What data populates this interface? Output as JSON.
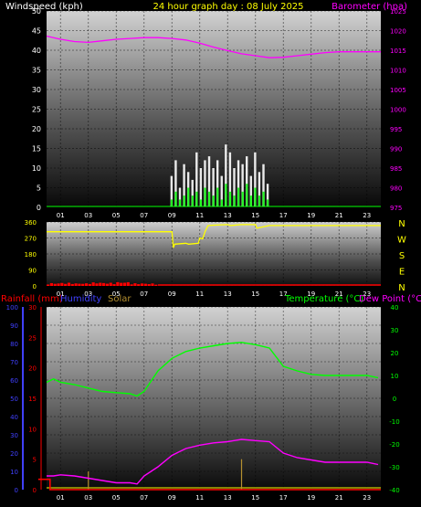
{
  "header": {
    "left_label": "Windspeed (kph)",
    "center_title": "24 hour graph day : 08 July 2025",
    "right_label": "Barometer (hpa)"
  },
  "colors": {
    "wind": "#ffffff",
    "gust_fill": "#ffffff",
    "wind_avg": "#00ff00",
    "barometer": "#ff00ff",
    "direction": "#ffff00",
    "rain": "#ff0000",
    "humidity": "#b000b0",
    "solar": "#b59030",
    "temperature": "#00ff00",
    "dewpoint": "#ff00ff",
    "axis_yellow": "#ffff00",
    "axis_label_blue": "#4040ff"
  },
  "chart_data": [
    {
      "type": "line",
      "panel": "wind-barometer",
      "x_ticks": [
        "01",
        "03",
        "05",
        "07",
        "09",
        "11",
        "13",
        "15",
        "17",
        "19",
        "21",
        "23"
      ],
      "ylim": [
        0,
        50
      ],
      "y_ticks": [
        0,
        5,
        10,
        15,
        20,
        25,
        30,
        35,
        40,
        45,
        50
      ],
      "y2lim": [
        975,
        1025
      ],
      "y2_ticks": [
        975,
        980,
        985,
        990,
        995,
        1000,
        1005,
        1010,
        1015,
        1020,
        1025
      ],
      "grid": true,
      "series": [
        {
          "role": "barometer",
          "x": [
            0,
            1,
            2,
            3,
            4,
            5,
            6,
            7,
            8,
            9,
            10,
            11,
            12,
            13,
            14,
            15,
            16,
            17,
            18,
            19,
            20,
            21,
            22,
            23,
            24
          ],
          "values": [
            1018.6,
            1017.8,
            1017.2,
            1017.0,
            1017.4,
            1017.8,
            1018.0,
            1018.2,
            1018.2,
            1018.0,
            1017.6,
            1016.8,
            1015.8,
            1014.9,
            1014.1,
            1013.6,
            1013.1,
            1013.2,
            1013.6,
            1014.0,
            1014.4,
            1014.6,
            1014.6,
            1014.6,
            1014.6
          ]
        },
        {
          "role": "wind-gust",
          "x": [
            9.0,
            9.3,
            9.6,
            9.9,
            10.2,
            10.5,
            10.8,
            11.1,
            11.4,
            11.7,
            12.0,
            12.3,
            12.6,
            12.9,
            13.2,
            13.5,
            13.8,
            14.1,
            14.4,
            14.7,
            15.0,
            15.3,
            15.6,
            15.9,
            16.1
          ],
          "values": [
            8,
            12,
            5,
            11,
            9,
            7,
            14,
            10,
            12,
            13,
            10,
            12,
            8,
            16,
            14,
            10,
            12,
            11,
            13,
            8,
            14,
            9,
            11,
            6,
            0
          ]
        },
        {
          "role": "wind-average",
          "x": [
            9.0,
            9.3,
            9.6,
            9.9,
            10.2,
            10.5,
            10.8,
            11.1,
            11.4,
            11.7,
            12.0,
            12.3,
            12.6,
            12.9,
            13.2,
            13.5,
            13.8,
            14.1,
            14.4,
            14.7,
            15.0,
            15.3,
            15.6,
            15.9,
            16.1
          ],
          "values": [
            2,
            4,
            2,
            3,
            5,
            3,
            4,
            2,
            5,
            4,
            3,
            5,
            2,
            6,
            4,
            3,
            5,
            4,
            6,
            3,
            5,
            3,
            4,
            2,
            0
          ]
        }
      ]
    },
    {
      "type": "line",
      "panel": "wind-direction",
      "x_ticks": [
        "01",
        "03",
        "05",
        "07",
        "09",
        "11",
        "13",
        "15",
        "17",
        "19",
        "21",
        "23"
      ],
      "ylim": [
        0,
        360
      ],
      "y_ticks": [
        0,
        90,
        180,
        270,
        360
      ],
      "right_labels": [
        "N",
        "W",
        "S",
        "E",
        "N"
      ],
      "grid": true,
      "series": [
        {
          "role": "direction",
          "x": [
            0,
            9.0,
            9.1,
            9.2,
            10.0,
            10.2,
            10.9,
            11.0,
            11.2,
            11.4,
            11.6,
            12.0,
            13.0,
            13.2,
            14.0,
            15.0,
            15.1,
            16.0,
            24.0
          ],
          "values": [
            305,
            305,
            215,
            235,
            240,
            235,
            240,
            270,
            265,
            310,
            340,
            342,
            345,
            340,
            345,
            345,
            325,
            340,
            340
          ]
        },
        {
          "role": "rain-bars",
          "x": [
            0,
            1,
            2,
            3,
            4,
            5,
            6,
            7,
            8
          ],
          "values": [
            16,
            18,
            15,
            20,
            18,
            22,
            15,
            14,
            8
          ]
        }
      ]
    },
    {
      "type": "line",
      "panel": "temp-humidity",
      "x_ticks": [
        "01",
        "03",
        "05",
        "07",
        "09",
        "11",
        "13",
        "15",
        "17",
        "19",
        "21",
        "23"
      ],
      "rain_axis": {
        "ylim": [
          0,
          30
        ],
        "y_ticks": [
          0,
          5,
          10,
          15,
          20,
          25,
          30
        ]
      },
      "humidity_axis": {
        "ylim": [
          0,
          100
        ],
        "y_ticks": [
          0,
          10,
          20,
          30,
          40,
          50,
          60,
          70,
          80,
          90,
          100
        ]
      },
      "temp_axis": {
        "ylim": [
          -40,
          40
        ],
        "y_ticks": [
          -40,
          -30,
          -20,
          -10,
          0,
          10,
          20,
          30,
          40
        ]
      },
      "grid": true,
      "series": [
        {
          "role": "temperature",
          "x": [
            0,
            0.5,
            1,
            2,
            3,
            4,
            5,
            6,
            6.5,
            7,
            8,
            9,
            10,
            11,
            12,
            13,
            14,
            15,
            16,
            17,
            18,
            19,
            20,
            21,
            22,
            23,
            23.8
          ],
          "values": [
            7,
            8.5,
            7,
            6,
            4.5,
            3,
            2.5,
            2,
            1,
            3,
            12,
            17.5,
            20.5,
            22,
            23,
            24,
            24.5,
            23.5,
            22,
            14,
            12,
            10.5,
            10,
            10,
            10,
            10,
            9
          ]
        },
        {
          "role": "dewpoint-humidity",
          "x": [
            0,
            0.5,
            1,
            2,
            3,
            4,
            5,
            6,
            6.5,
            7,
            8,
            9,
            10,
            11,
            12,
            13,
            14,
            15,
            16,
            17,
            18,
            19,
            20,
            21,
            22,
            23,
            23.8
          ],
          "values": [
            -34,
            -34,
            -33.5,
            -34,
            -35,
            -36,
            -37,
            -37,
            -37.5,
            -34,
            -30,
            -25,
            -22,
            -20.5,
            -19.5,
            -19,
            -18,
            -18.5,
            -19,
            -24,
            -26,
            -27,
            -28,
            -28,
            -28,
            -28,
            -29
          ]
        },
        {
          "role": "rainfall",
          "x": [
            -0.6,
            0.25,
            0.25,
            24
          ],
          "values": [
            1.7,
            1.7,
            0,
            0
          ]
        },
        {
          "role": "solar-spikes",
          "x": [
            3.0,
            14.0
          ],
          "values": [
            3,
            5
          ]
        }
      ]
    }
  ],
  "bottom_header": {
    "rainfall_label": "Rainfall (mm)",
    "humidity_label": "Humidity",
    "solar_label": "Solar",
    "temperature_label": "Temperature (°C)",
    "dewpoint_label": "Dew Point (°C)"
  }
}
